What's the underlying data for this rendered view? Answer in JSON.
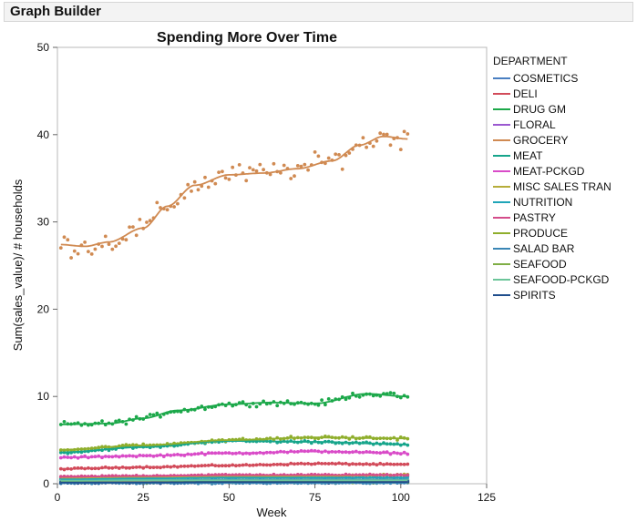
{
  "window": {
    "title": "Graph Builder"
  },
  "chart_data": {
    "type": "scatter",
    "title": "Spending More Over Time",
    "xlabel": "Week",
    "ylabel": "Sum(sales_value)/ # households",
    "xlim": [
      0,
      125
    ],
    "ylim": [
      0,
      50
    ],
    "xticks": [
      0,
      25,
      50,
      75,
      100,
      125
    ],
    "yticks": [
      0,
      10,
      20,
      30,
      40,
      50
    ],
    "grid": false,
    "legend_position": "right",
    "legend_title": "DEPARTMENT",
    "smoother": true,
    "series": [
      {
        "name": "COSMETICS",
        "color": "#4a7fc1",
        "trend": [
          [
            1,
            0.4
          ],
          [
            25,
            0.4
          ],
          [
            50,
            0.45
          ],
          [
            75,
            0.45
          ],
          [
            102,
            0.45
          ]
        ]
      },
      {
        "name": "DELI",
        "color": "#d24b5a",
        "trend": [
          [
            1,
            1.7
          ],
          [
            25,
            1.9
          ],
          [
            50,
            2.1
          ],
          [
            75,
            2.3
          ],
          [
            102,
            2.2
          ]
        ]
      },
      {
        "name": "DRUG GM",
        "color": "#1ca84a",
        "trend": [
          [
            1,
            6.8
          ],
          [
            15,
            6.9
          ],
          [
            25,
            7.5
          ],
          [
            35,
            8.4
          ],
          [
            50,
            9.1
          ],
          [
            62,
            9.3
          ],
          [
            75,
            9.2
          ],
          [
            90,
            10.3
          ],
          [
            102,
            10.0
          ]
        ]
      },
      {
        "name": "FLORAL",
        "color": "#9b59d0",
        "trend": [
          [
            1,
            0.3
          ],
          [
            25,
            0.3
          ],
          [
            50,
            0.3
          ],
          [
            75,
            0.35
          ],
          [
            102,
            0.3
          ]
        ]
      },
      {
        "name": "GROCERY",
        "color": "#d08a52",
        "trend": [
          [
            1,
            27.4
          ],
          [
            8,
            27.2
          ],
          [
            15,
            27.7
          ],
          [
            25,
            29.3
          ],
          [
            32,
            31.8
          ],
          [
            40,
            34.2
          ],
          [
            50,
            35.4
          ],
          [
            60,
            35.6
          ],
          [
            70,
            36.1
          ],
          [
            80,
            37.0
          ],
          [
            88,
            38.8
          ],
          [
            95,
            39.8
          ],
          [
            102,
            39.5
          ]
        ]
      },
      {
        "name": "MEAT",
        "color": "#17a58b",
        "trend": [
          [
            1,
            3.6
          ],
          [
            25,
            4.2
          ],
          [
            50,
            4.9
          ],
          [
            75,
            4.8
          ],
          [
            102,
            4.5
          ]
        ]
      },
      {
        "name": "MEAT-PCKGD",
        "color": "#d94bc8",
        "trend": [
          [
            1,
            3.0
          ],
          [
            25,
            3.2
          ],
          [
            50,
            3.5
          ],
          [
            75,
            3.7
          ],
          [
            102,
            3.5
          ]
        ]
      },
      {
        "name": "MISC SALES TRAN",
        "color": "#b6ad3a",
        "trend": [
          [
            1,
            0.6
          ],
          [
            25,
            0.7
          ],
          [
            50,
            0.8
          ],
          [
            75,
            0.9
          ],
          [
            102,
            1.0
          ]
        ]
      },
      {
        "name": "NUTRITION",
        "color": "#1fa5b8",
        "trend": [
          [
            1,
            0.5
          ],
          [
            25,
            0.6
          ],
          [
            50,
            0.7
          ],
          [
            75,
            0.7
          ],
          [
            102,
            0.7
          ]
        ]
      },
      {
        "name": "PASTRY",
        "color": "#d44c8a",
        "trend": [
          [
            1,
            0.8
          ],
          [
            25,
            0.9
          ],
          [
            50,
            1.0
          ],
          [
            75,
            1.0
          ],
          [
            102,
            1.0
          ]
        ]
      },
      {
        "name": "PRODUCE",
        "color": "#8fae2c",
        "trend": [
          [
            1,
            3.9
          ],
          [
            25,
            4.4
          ],
          [
            50,
            5.0
          ],
          [
            75,
            5.3
          ],
          [
            102,
            5.2
          ]
        ]
      },
      {
        "name": "SALAD BAR",
        "color": "#3a86b5",
        "trend": [
          [
            1,
            0.1
          ],
          [
            25,
            0.1
          ],
          [
            50,
            0.1
          ],
          [
            75,
            0.1
          ],
          [
            102,
            0.1
          ]
        ]
      },
      {
        "name": "SEAFOOD",
        "color": "#7fae45",
        "trend": [
          [
            1,
            0.2
          ],
          [
            25,
            0.2
          ],
          [
            50,
            0.25
          ],
          [
            75,
            0.25
          ],
          [
            102,
            0.2
          ]
        ]
      },
      {
        "name": "SEAFOOD-PCKGD",
        "color": "#6cc59a",
        "trend": [
          [
            1,
            0.35
          ],
          [
            25,
            0.4
          ],
          [
            50,
            0.4
          ],
          [
            75,
            0.4
          ],
          [
            102,
            0.4
          ]
        ]
      },
      {
        "name": "SPIRITS",
        "color": "#1f4e8c",
        "trend": [
          [
            1,
            0.15
          ],
          [
            25,
            0.15
          ],
          [
            50,
            0.2
          ],
          [
            75,
            0.2
          ],
          [
            102,
            0.2
          ]
        ]
      }
    ]
  }
}
